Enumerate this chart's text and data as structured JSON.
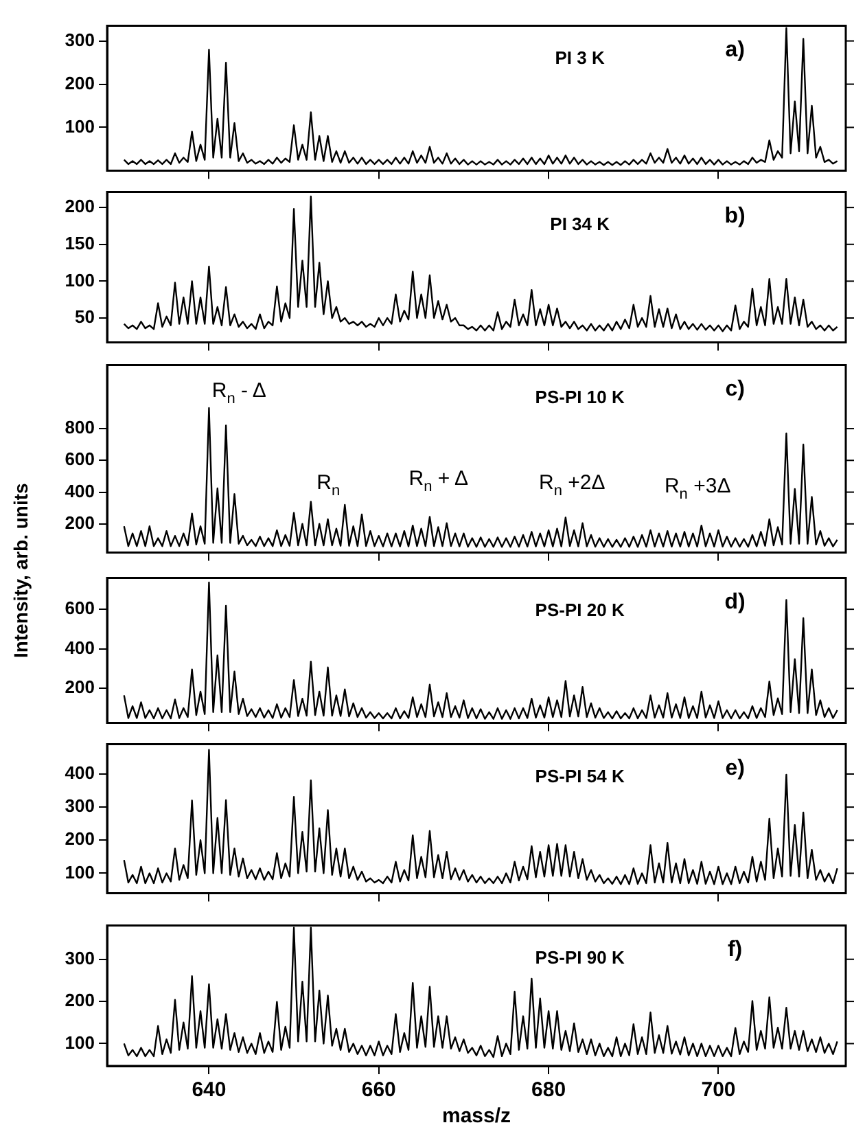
{
  "chart_data": [
    {
      "type": "line",
      "title": "PI 3 K",
      "annotations": [
        "a)"
      ],
      "marker": "none",
      "tick_labels": "y",
      "xlim": [
        628,
        715
      ],
      "xticks": [
        640,
        660,
        680,
        700
      ],
      "ylim": [
        0,
        335
      ],
      "yticks": [
        100,
        200,
        300
      ],
      "x": [
        630,
        630.5,
        631,
        631.5,
        632,
        632.5,
        633,
        633.5,
        634,
        634.5,
        635,
        635.5,
        636,
        636.5,
        637,
        637.5,
        638,
        638.5,
        639,
        639.5,
        640,
        640.5,
        641,
        641.5,
        642,
        642.5,
        643,
        643.5,
        644,
        644.5,
        645,
        645.5,
        646,
        646.5,
        647,
        647.5,
        648,
        648.5,
        649,
        649.5,
        650,
        650.5,
        651,
        651.5,
        652,
        652.5,
        653,
        653.5,
        654,
        654.5,
        655,
        655.5,
        656,
        656.5,
        657,
        657.5,
        658,
        658.5,
        659,
        659.5,
        660,
        660.5,
        661,
        661.5,
        662,
        662.5,
        663,
        663.5,
        664,
        664.5,
        665,
        665.5,
        666,
        666.5,
        667,
        667.5,
        668,
        668.5,
        669,
        669.5,
        670,
        670.5,
        671,
        671.5,
        672,
        672.5,
        673,
        673.5,
        674,
        674.5,
        675,
        675.5,
        676,
        676.5,
        677,
        677.5,
        678,
        678.5,
        679,
        679.5,
        680,
        680.5,
        681,
        681.5,
        682,
        682.5,
        683,
        683.5,
        684,
        684.5,
        685,
        685.5,
        686,
        686.5,
        687,
        687.5,
        688,
        688.5,
        689,
        689.5,
        690,
        690.5,
        691,
        691.5,
        692,
        692.5,
        693,
        693.5,
        694,
        694.5,
        695,
        695.5,
        696,
        696.5,
        697,
        697.5,
        698,
        698.5,
        699,
        699.5,
        700,
        700.5,
        701,
        701.5,
        702,
        702.5,
        703,
        703.5,
        704,
        704.5,
        705,
        705.5,
        706,
        706.5,
        707,
        707.5,
        708,
        708.5,
        709,
        709.5,
        710,
        710.5,
        711,
        711.5,
        712,
        712.5,
        713,
        713.5,
        714
      ],
      "series": [
        {
          "color": "#000000",
          "values": [
            25,
            15,
            22,
            15,
            25,
            15,
            22,
            15,
            24,
            15,
            25,
            15,
            40,
            18,
            30,
            20,
            90,
            22,
            60,
            25,
            280,
            30,
            120,
            30,
            250,
            30,
            110,
            22,
            40,
            18,
            25,
            16,
            22,
            15,
            25,
            16,
            30,
            18,
            28,
            20,
            105,
            25,
            60,
            25,
            135,
            25,
            80,
            22,
            80,
            20,
            45,
            18,
            45,
            18,
            30,
            16,
            30,
            15,
            25,
            15,
            25,
            15,
            25,
            15,
            30,
            16,
            30,
            16,
            45,
            18,
            35,
            18,
            55,
            18,
            30,
            16,
            40,
            16,
            28,
            15,
            25,
            14,
            22,
            14,
            22,
            14,
            20,
            14,
            25,
            14,
            22,
            14,
            25,
            15,
            28,
            15,
            30,
            15,
            28,
            15,
            35,
            16,
            30,
            16,
            35,
            16,
            30,
            15,
            25,
            14,
            22,
            14,
            20,
            13,
            20,
            13,
            20,
            13,
            22,
            14,
            25,
            15,
            25,
            16,
            40,
            18,
            30,
            18,
            50,
            18,
            30,
            16,
            35,
            16,
            28,
            15,
            30,
            15,
            25,
            14,
            25,
            14,
            22,
            14,
            20,
            14,
            22,
            15,
            30,
            18,
            25,
            20,
            70,
            25,
            45,
            30,
            330,
            40,
            160,
            45,
            305,
            40,
            150,
            30,
            55,
            20,
            25,
            16,
            22
          ]
        }
      ]
    },
    {
      "type": "line",
      "title": "PI 34 K",
      "annotations": [
        "b)"
      ],
      "marker": "none",
      "tick_labels": "y",
      "xlim": [
        628,
        715
      ],
      "xticks": [
        640,
        660,
        680,
        700
      ],
      "ylim": [
        17,
        221
      ],
      "yticks": [
        50,
        100,
        150,
        200
      ],
      "x": [
        630,
        630.5,
        631,
        631.5,
        632,
        632.5,
        633,
        633.5,
        634,
        634.5,
        635,
        635.5,
        636,
        636.5,
        637,
        637.5,
        638,
        638.5,
        639,
        639.5,
        640,
        640.5,
        641,
        641.5,
        642,
        642.5,
        643,
        643.5,
        644,
        644.5,
        645,
        645.5,
        646,
        646.5,
        647,
        647.5,
        648,
        648.5,
        649,
        649.5,
        650,
        650.5,
        651,
        651.5,
        652,
        652.5,
        653,
        653.5,
        654,
        654.5,
        655,
        655.5,
        656,
        656.5,
        657,
        657.5,
        658,
        658.5,
        659,
        659.5,
        660,
        660.5,
        661,
        661.5,
        662,
        662.5,
        663,
        663.5,
        664,
        664.5,
        665,
        665.5,
        666,
        666.5,
        667,
        667.5,
        668,
        668.5,
        669,
        669.5,
        670,
        670.5,
        671,
        671.5,
        672,
        672.5,
        673,
        673.5,
        674,
        674.5,
        675,
        675.5,
        676,
        676.5,
        677,
        677.5,
        678,
        678.5,
        679,
        679.5,
        680,
        680.5,
        681,
        681.5,
        682,
        682.5,
        683,
        683.5,
        684,
        684.5,
        685,
        685.5,
        686,
        686.5,
        687,
        687.5,
        688,
        688.5,
        689,
        689.5,
        690,
        690.5,
        691,
        691.5,
        692,
        692.5,
        693,
        693.5,
        694,
        694.5,
        695,
        695.5,
        696,
        696.5,
        697,
        697.5,
        698,
        698.5,
        699,
        699.5,
        700,
        700.5,
        701,
        701.5,
        702,
        702.5,
        703,
        703.5,
        704,
        704.5,
        705,
        705.5,
        706,
        706.5,
        707,
        707.5,
        708,
        708.5,
        709,
        709.5,
        710,
        710.5,
        711,
        711.5,
        712,
        712.5,
        713,
        713.5,
        714
      ],
      "series": [
        {
          "color": "#000000",
          "values": [
            42,
            36,
            40,
            35,
            45,
            36,
            40,
            35,
            70,
            38,
            52,
            40,
            98,
            42,
            78,
            42,
            100,
            42,
            78,
            42,
            120,
            42,
            65,
            40,
            92,
            40,
            55,
            38,
            45,
            36,
            42,
            35,
            55,
            36,
            45,
            40,
            93,
            45,
            70,
            50,
            198,
            65,
            128,
            65,
            215,
            65,
            125,
            55,
            100,
            50,
            65,
            45,
            50,
            42,
            45,
            40,
            45,
            38,
            42,
            38,
            50,
            40,
            50,
            42,
            82,
            45,
            60,
            48,
            113,
            50,
            82,
            50,
            108,
            50,
            73,
            48,
            68,
            45,
            50,
            40,
            40,
            35,
            38,
            33,
            40,
            33,
            40,
            33,
            58,
            35,
            45,
            38,
            75,
            40,
            55,
            40,
            88,
            40,
            62,
            40,
            68,
            40,
            63,
            38,
            45,
            36,
            45,
            35,
            40,
            33,
            42,
            33,
            40,
            33,
            42,
            33,
            45,
            35,
            48,
            36,
            68,
            38,
            50,
            38,
            80,
            38,
            62,
            38,
            63,
            36,
            55,
            35,
            45,
            35,
            42,
            34,
            42,
            34,
            40,
            33,
            40,
            32,
            40,
            33,
            67,
            35,
            45,
            38,
            90,
            40,
            65,
            40,
            103,
            42,
            65,
            42,
            103,
            42,
            78,
            40,
            75,
            38,
            45,
            35,
            40,
            33,
            40,
            33,
            38
          ]
        }
      ]
    },
    {
      "type": "line",
      "title": "PS-PI 10 K",
      "ylabel": "Intensity, arb. units",
      "annotations": [
        "c)",
        "R$_{n}$ - Δ",
        "R$_{n}$",
        "R$_{n}$ + Δ",
        "R$_{n}$ +2Δ",
        "R$_{n}$ +3Δ"
      ],
      "marker": "none",
      "tick_labels": "y",
      "xlim": [
        628,
        715
      ],
      "xticks": [
        640,
        660,
        680,
        700
      ],
      "ylim": [
        20,
        1200
      ],
      "yticks": [
        200,
        400,
        600,
        800
      ],
      "x": [
        630,
        630.5,
        631,
        631.5,
        632,
        632.5,
        633,
        633.5,
        634,
        634.5,
        635,
        635.5,
        636,
        636.5,
        637,
        637.5,
        638,
        638.5,
        639,
        639.5,
        640,
        640.5,
        641,
        641.5,
        642,
        642.5,
        643,
        643.5,
        644,
        644.5,
        645,
        645.5,
        646,
        646.5,
        647,
        647.5,
        648,
        648.5,
        649,
        649.5,
        650,
        650.5,
        651,
        651.5,
        652,
        652.5,
        653,
        653.5,
        654,
        654.5,
        655,
        655.5,
        656,
        656.5,
        657,
        657.5,
        658,
        658.5,
        659,
        659.5,
        660,
        660.5,
        661,
        661.5,
        662,
        662.5,
        663,
        663.5,
        664,
        664.5,
        665,
        665.5,
        666,
        666.5,
        667,
        667.5,
        668,
        668.5,
        669,
        669.5,
        670,
        670.5,
        671,
        671.5,
        672,
        672.5,
        673,
        673.5,
        674,
        674.5,
        675,
        675.5,
        676,
        676.5,
        677,
        677.5,
        678,
        678.5,
        679,
        679.5,
        680,
        680.5,
        681,
        681.5,
        682,
        682.5,
        683,
        683.5,
        684,
        684.5,
        685,
        685.5,
        686,
        686.5,
        687,
        687.5,
        688,
        688.5,
        689,
        689.5,
        690,
        690.5,
        691,
        691.5,
        692,
        692.5,
        693,
        693.5,
        694,
        694.5,
        695,
        695.5,
        696,
        696.5,
        697,
        697.5,
        698,
        698.5,
        699,
        699.5,
        700,
        700.5,
        701,
        701.5,
        702,
        702.5,
        703,
        703.5,
        704,
        704.5,
        705,
        705.5,
        706,
        706.5,
        707,
        707.5,
        708,
        708.5,
        709,
        709.5,
        710,
        710.5,
        711,
        711.5,
        712,
        712.5,
        713,
        713.5,
        714
      ],
      "series": [
        {
          "color": "#000000",
          "values": [
            185,
            60,
            140,
            60,
            155,
            60,
            185,
            60,
            110,
            60,
            155,
            60,
            125,
            60,
            140,
            65,
            265,
            70,
            185,
            75,
            930,
            80,
            424,
            80,
            820,
            80,
            388,
            75,
            125,
            65,
            100,
            60,
            120,
            60,
            110,
            60,
            160,
            60,
            130,
            62,
            270,
            65,
            200,
            65,
            340,
            65,
            200,
            65,
            230,
            65,
            170,
            62,
            320,
            62,
            185,
            60,
            260,
            60,
            155,
            60,
            125,
            58,
            140,
            58,
            140,
            58,
            155,
            58,
            190,
            60,
            170,
            60,
            245,
            60,
            180,
            60,
            205,
            60,
            140,
            58,
            140,
            56,
            110,
            55,
            115,
            55,
            105,
            55,
            115,
            55,
            110,
            55,
            120,
            56,
            130,
            57,
            150,
            58,
            140,
            58,
            160,
            58,
            170,
            58,
            240,
            60,
            160,
            58,
            205,
            58,
            130,
            56,
            110,
            55,
            105,
            55,
            100,
            55,
            110,
            55,
            120,
            55,
            130,
            56,
            160,
            57,
            140,
            57,
            155,
            57,
            140,
            57,
            150,
            57,
            140,
            57,
            190,
            58,
            140,
            57,
            160,
            57,
            120,
            56,
            110,
            56,
            105,
            56,
            130,
            58,
            150,
            62,
            230,
            65,
            180,
            70,
            770,
            75,
            420,
            75,
            700,
            75,
            370,
            70,
            155,
            62,
            110,
            58,
            100
          ]
        }
      ]
    },
    {
      "type": "line",
      "title": "PS-PI 20 K",
      "annotations": [
        "d)"
      ],
      "marker": "none",
      "tick_labels": "y",
      "xlim": [
        628,
        715
      ],
      "xticks": [
        640,
        660,
        680,
        700
      ],
      "ylim": [
        26,
        758
      ],
      "yticks": [
        200,
        400,
        600
      ],
      "x": [
        630,
        630.5,
        631,
        631.5,
        632,
        632.5,
        633,
        633.5,
        634,
        634.5,
        635,
        635.5,
        636,
        636.5,
        637,
        637.5,
        638,
        638.5,
        639,
        639.5,
        640,
        640.5,
        641,
        641.5,
        642,
        642.5,
        643,
        643.5,
        644,
        644.5,
        645,
        645.5,
        646,
        646.5,
        647,
        647.5,
        648,
        648.5,
        649,
        649.5,
        650,
        650.5,
        651,
        651.5,
        652,
        652.5,
        653,
        653.5,
        654,
        654.5,
        655,
        655.5,
        656,
        656.5,
        657,
        657.5,
        658,
        658.5,
        659,
        659.5,
        660,
        660.5,
        661,
        661.5,
        662,
        662.5,
        663,
        663.5,
        664,
        664.5,
        665,
        665.5,
        666,
        666.5,
        667,
        667.5,
        668,
        668.5,
        669,
        669.5,
        670,
        670.5,
        671,
        671.5,
        672,
        672.5,
        673,
        673.5,
        674,
        674.5,
        675,
        675.5,
        676,
        676.5,
        677,
        677.5,
        678,
        678.5,
        679,
        679.5,
        680,
        680.5,
        681,
        681.5,
        682,
        682.5,
        683,
        683.5,
        684,
        684.5,
        685,
        685.5,
        686,
        686.5,
        687,
        687.5,
        688,
        688.5,
        689,
        689.5,
        690,
        690.5,
        691,
        691.5,
        692,
        692.5,
        693,
        693.5,
        694,
        694.5,
        695,
        695.5,
        696,
        696.5,
        697,
        697.5,
        698,
        698.5,
        699,
        699.5,
        700,
        700.5,
        701,
        701.5,
        702,
        702.5,
        703,
        703.5,
        704,
        704.5,
        705,
        705.5,
        706,
        706.5,
        707,
        707.5,
        708,
        708.5,
        709,
        709.5,
        710,
        710.5,
        711,
        711.5,
        712,
        712.5,
        713,
        713.5,
        714
      ],
      "series": [
        {
          "color": "#000000",
          "values": [
            165,
            50,
            110,
            50,
            130,
            50,
            90,
            48,
            100,
            48,
            90,
            48,
            144,
            50,
            100,
            55,
            296,
            65,
            184,
            70,
            736,
            80,
            367,
            80,
            618,
            80,
            285,
            70,
            148,
            60,
            95,
            55,
            100,
            52,
            90,
            50,
            120,
            52,
            100,
            55,
            242,
            60,
            148,
            62,
            336,
            65,
            184,
            62,
            306,
            62,
            165,
            60,
            195,
            58,
            125,
            55,
            100,
            52,
            80,
            50,
            75,
            48,
            75,
            48,
            100,
            48,
            85,
            50,
            155,
            55,
            120,
            55,
            219,
            58,
            130,
            55,
            176,
            55,
            110,
            52,
            140,
            50,
            100,
            48,
            95,
            46,
            80,
            46,
            100,
            46,
            90,
            46,
            100,
            48,
            100,
            50,
            148,
            52,
            115,
            52,
            155,
            55,
            140,
            55,
            238,
            58,
            165,
            58,
            207,
            55,
            125,
            52,
            100,
            50,
            80,
            48,
            85,
            48,
            75,
            48,
            100,
            48,
            90,
            50,
            165,
            52,
            115,
            52,
            176,
            52,
            120,
            50,
            155,
            50,
            110,
            50,
            184,
            52,
            115,
            50,
            135,
            50,
            90,
            48,
            90,
            48,
            80,
            48,
            110,
            50,
            100,
            55,
            235,
            65,
            150,
            70,
            647,
            80,
            348,
            75,
            555,
            75,
            296,
            65,
            140,
            55,
            100,
            50,
            90
          ]
        }
      ]
    },
    {
      "type": "line",
      "title": "PS-PI 54 K",
      "annotations": [
        "e)"
      ],
      "marker": "none",
      "tick_labels": "y",
      "xlim": [
        628,
        715
      ],
      "xticks": [
        640,
        660,
        680,
        700
      ],
      "ylim": [
        40,
        490
      ],
      "yticks": [
        100,
        200,
        300,
        400
      ],
      "x": [
        630,
        630.5,
        631,
        631.5,
        632,
        632.5,
        633,
        633.5,
        634,
        634.5,
        635,
        635.5,
        636,
        636.5,
        637,
        637.5,
        638,
        638.5,
        639,
        639.5,
        640,
        640.5,
        641,
        641.5,
        642,
        642.5,
        643,
        643.5,
        644,
        644.5,
        645,
        645.5,
        646,
        646.5,
        647,
        647.5,
        648,
        648.5,
        649,
        649.5,
        650,
        650.5,
        651,
        651.5,
        652,
        652.5,
        653,
        653.5,
        654,
        654.5,
        655,
        655.5,
        656,
        656.5,
        657,
        657.5,
        658,
        658.5,
        659,
        659.5,
        660,
        660.5,
        661,
        661.5,
        662,
        662.5,
        663,
        663.5,
        664,
        664.5,
        665,
        665.5,
        666,
        666.5,
        667,
        667.5,
        668,
        668.5,
        669,
        669.5,
        670,
        670.5,
        671,
        671.5,
        672,
        672.5,
        673,
        673.5,
        674,
        674.5,
        675,
        675.5,
        676,
        676.5,
        677,
        677.5,
        678,
        678.5,
        679,
        679.5,
        680,
        680.5,
        681,
        681.5,
        682,
        682.5,
        683,
        683.5,
        684,
        684.5,
        685,
        685.5,
        686,
        686.5,
        687,
        687.5,
        688,
        688.5,
        689,
        689.5,
        690,
        690.5,
        691,
        691.5,
        692,
        692.5,
        693,
        693.5,
        694,
        694.5,
        695,
        695.5,
        696,
        696.5,
        697,
        697.5,
        698,
        698.5,
        699,
        699.5,
        700,
        700.5,
        701,
        701.5,
        702,
        702.5,
        703,
        703.5,
        704,
        704.5,
        705,
        705.5,
        706,
        706.5,
        707,
        707.5,
        708,
        708.5,
        709,
        709.5,
        710,
        710.5,
        711,
        711.5,
        712,
        712.5,
        713,
        713.5,
        714
      ],
      "series": [
        {
          "color": "#000000",
          "values": [
            140,
            72,
            95,
            70,
            120,
            70,
            100,
            70,
            115,
            72,
            100,
            75,
            175,
            80,
            125,
            85,
            320,
            95,
            200,
            100,
            473,
            100,
            267,
            100,
            321,
            95,
            175,
            90,
            145,
            85,
            110,
            82,
            115,
            80,
            105,
            82,
            161,
            85,
            130,
            90,
            331,
            100,
            225,
            105,
            381,
            105,
            236,
            100,
            291,
            95,
            175,
            90,
            175,
            85,
            120,
            80,
            105,
            75,
            85,
            72,
            80,
            70,
            90,
            72,
            135,
            75,
            110,
            78,
            215,
            85,
            150,
            88,
            228,
            88,
            155,
            85,
            165,
            82,
            115,
            80,
            110,
            75,
            95,
            72,
            90,
            70,
            85,
            70,
            90,
            70,
            100,
            72,
            135,
            78,
            120,
            82,
            182,
            88,
            165,
            90,
            185,
            92,
            189,
            92,
            185,
            90,
            165,
            85,
            143,
            80,
            110,
            75,
            95,
            70,
            85,
            68,
            90,
            67,
            95,
            67,
            115,
            68,
            100,
            70,
            185,
            72,
            130,
            72,
            192,
            72,
            130,
            70,
            143,
            70,
            110,
            68,
            135,
            68,
            105,
            67,
            120,
            67,
            100,
            67,
            120,
            70,
            105,
            72,
            150,
            75,
            135,
            80,
            265,
            85,
            175,
            90,
            398,
            92,
            246,
            90,
            284,
            85,
            171,
            80,
            110,
            75,
            100,
            70,
            115
          ]
        }
      ]
    },
    {
      "type": "line",
      "title": "PS-PI 90 K",
      "annotations": [
        "f)"
      ],
      "xlabel": "mass/z",
      "marker": "none",
      "xlim": [
        628,
        715
      ],
      "xticks": [
        640,
        660,
        680,
        700
      ],
      "ylim": [
        47,
        380
      ],
      "yticks": [
        100,
        200,
        300
      ],
      "x": [
        630,
        630.5,
        631,
        631.5,
        632,
        632.5,
        633,
        633.5,
        634,
        634.5,
        635,
        635.5,
        636,
        636.5,
        637,
        637.5,
        638,
        638.5,
        639,
        639.5,
        640,
        640.5,
        641,
        641.5,
        642,
        642.5,
        643,
        643.5,
        644,
        644.5,
        645,
        645.5,
        646,
        646.5,
        647,
        647.5,
        648,
        648.5,
        649,
        649.5,
        650,
        650.5,
        651,
        651.5,
        652,
        652.5,
        653,
        653.5,
        654,
        654.5,
        655,
        655.5,
        656,
        656.5,
        657,
        657.5,
        658,
        658.5,
        659,
        659.5,
        660,
        660.5,
        661,
        661.5,
        662,
        662.5,
        663,
        663.5,
        664,
        664.5,
        665,
        665.5,
        666,
        666.5,
        667,
        667.5,
        668,
        668.5,
        669,
        669.5,
        670,
        670.5,
        671,
        671.5,
        672,
        672.5,
        673,
        673.5,
        674,
        674.5,
        675,
        675.5,
        676,
        676.5,
        677,
        677.5,
        678,
        678.5,
        679,
        679.5,
        680,
        680.5,
        681,
        681.5,
        682,
        682.5,
        683,
        683.5,
        684,
        684.5,
        685,
        685.5,
        686,
        686.5,
        687,
        687.5,
        688,
        688.5,
        689,
        689.5,
        690,
        690.5,
        691,
        691.5,
        692,
        692.5,
        693,
        693.5,
        694,
        694.5,
        695,
        695.5,
        696,
        696.5,
        697,
        697.5,
        698,
        698.5,
        699,
        699.5,
        700,
        700.5,
        701,
        701.5,
        702,
        702.5,
        703,
        703.5,
        704,
        704.5,
        705,
        705.5,
        706,
        706.5,
        707,
        707.5,
        708,
        708.5,
        709,
        709.5,
        710,
        710.5,
        711,
        711.5,
        712,
        712.5,
        713,
        713.5,
        714
      ],
      "series": [
        {
          "color": "#000000",
          "values": [
            100,
            72,
            85,
            70,
            90,
            70,
            85,
            70,
            142,
            75,
            110,
            78,
            204,
            85,
            150,
            88,
            260,
            90,
            177,
            90,
            241,
            90,
            158,
            88,
            170,
            85,
            125,
            80,
            115,
            78,
            100,
            75,
            125,
            78,
            105,
            80,
            199,
            85,
            140,
            90,
            375,
            105,
            247,
            105,
            375,
            105,
            226,
            100,
            214,
            95,
            135,
            85,
            135,
            80,
            100,
            75,
            95,
            72,
            95,
            72,
            105,
            72,
            95,
            75,
            170,
            80,
            125,
            85,
            244,
            90,
            165,
            92,
            235,
            92,
            165,
            90,
            165,
            88,
            115,
            82,
            110,
            78,
            90,
            72,
            95,
            70,
            85,
            68,
            118,
            70,
            100,
            75,
            223,
            85,
            165,
            88,
            254,
            90,
            207,
            90,
            177,
            88,
            177,
            85,
            130,
            82,
            148,
            80,
            110,
            75,
            110,
            72,
            100,
            70,
            90,
            70,
            115,
            70,
            100,
            72,
            146,
            75,
            115,
            75,
            174,
            78,
            120,
            78,
            142,
            76,
            105,
            74,
            115,
            72,
            100,
            70,
            100,
            70,
            95,
            70,
            95,
            70,
            90,
            70,
            137,
            75,
            105,
            80,
            201,
            85,
            130,
            88,
            210,
            90,
            138,
            88,
            185,
            88,
            130,
            85,
            130,
            82,
            110,
            80,
            115,
            78,
            100,
            75,
            105
          ]
        }
      ]
    }
  ]
}
